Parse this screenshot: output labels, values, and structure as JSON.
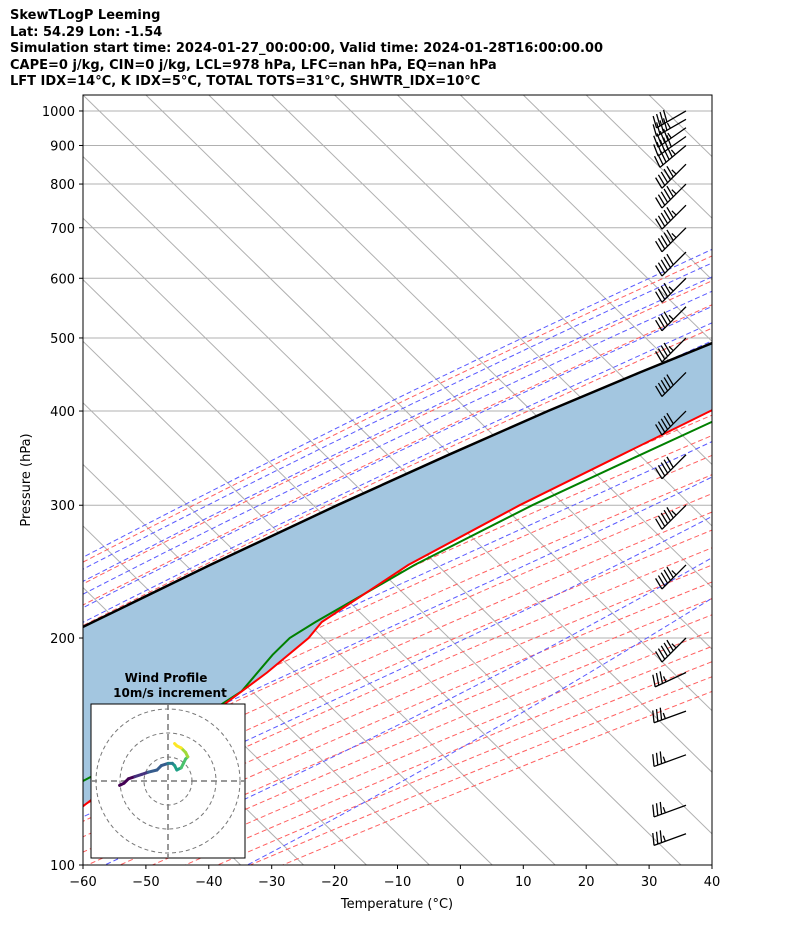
{
  "header": {
    "line1": "SkewTLogP Leeming",
    "line2": "Lat: 54.29   Lon: -1.54",
    "line3": "Simulation start time: 2024-01-27_00:00:00, Valid time: 2024-01-28T16:00:00.00",
    "line4": "CAPE=0 j/kg, CIN=0 j/kg, LCL=978 hPa, LFC=nan hPa, EQ=nan hPa",
    "line5": "LFT IDX=14°C, K IDX=5°C, TOTAL TOTS=31°C, SHWTR_IDX=10°C"
  },
  "colors": {
    "temperature": "#ff0000",
    "dewpoint": "#008000",
    "parcel": "#000000",
    "cape_shade": "#a3c6e0",
    "dry_adiabat": "#ff6060",
    "moist_adiabat": "#5a5aff",
    "mixing_ratio": "#9040c0",
    "isotherm": "#b0b0b0"
  },
  "chart_data": {
    "type": "line",
    "title": "SkewTLogP Leeming",
    "xlabel": "Temperature (°C)",
    "ylabel": "Pressure (hPa)",
    "xlim": [
      -60,
      40
    ],
    "ylim": [
      1050,
      100
    ],
    "y_scale": "log",
    "grid": true,
    "x_ticks": [
      "−60",
      "−50",
      "−40",
      "−30",
      "−20",
      "−10",
      "0",
      "10",
      "20",
      "30",
      "40"
    ],
    "y_ticks": [
      "1000",
      "900",
      "800",
      "700",
      "600",
      "500",
      "400",
      "300",
      "200",
      "100"
    ],
    "y_tick_values": [
      1000,
      900,
      800,
      700,
      600,
      500,
      400,
      300,
      200,
      100
    ],
    "series": [
      {
        "name": "Temperature",
        "pressure": [
          1000,
          990,
          970,
          950,
          930,
          910,
          900,
          880,
          850,
          800,
          750,
          700,
          650,
          600,
          550,
          500,
          450,
          400,
          350,
          300,
          250,
          210,
          200,
          180,
          160,
          140,
          120,
          100
        ],
        "temperature": [
          7.2,
          8.5,
          10.0,
          13.0,
          15.5,
          16.8,
          17.0,
          16.2,
          14.5,
          10.0,
          5.0,
          -0.5,
          -6.0,
          -11.0,
          -16.0,
          -21.5,
          -27.5,
          -34.0,
          -41.0,
          -49.0,
          -57.0,
          -61.5,
          -61.0,
          -62.0,
          -64.0,
          -67.0,
          -69.5,
          -71.5
        ]
      },
      {
        "name": "Dewpoint",
        "pressure": [
          1000,
          970,
          930,
          900,
          880,
          860,
          840,
          800,
          750,
          700,
          650,
          600,
          550,
          500,
          450,
          400,
          350,
          300,
          250,
          210,
          200,
          190,
          170,
          155,
          140,
          120,
          110,
          100
        ],
        "temperature": [
          6.5,
          5.5,
          2.0,
          -2.0,
          -8.0,
          -12.0,
          -16.0,
          -17.5,
          -14.5,
          -9.5,
          -6.5,
          -7.0,
          -10.0,
          -16.0,
          -23.0,
          -30.0,
          -38.0,
          -47.0,
          -56.0,
          -62.5,
          -64.0,
          -64.0,
          -63.0,
          -65.5,
          -70.0,
          -77.0,
          -82.0,
          -88.0
        ]
      },
      {
        "name": "Parcel",
        "pressure": [
          1000,
          978,
          950,
          900,
          850,
          800,
          750,
          700,
          650,
          600,
          550,
          500,
          450,
          400,
          350,
          300,
          250,
          200,
          150,
          120,
          100
        ],
        "temperature": [
          7.2,
          6.5,
          4.6,
          1.0,
          -3.0,
          -7.2,
          -11.8,
          -17.0,
          -22.8,
          -29.2,
          -36.2,
          -43.6,
          -51.5,
          -59.8,
          -68.5,
          -78.0,
          -88.5,
          -100.5,
          -115.0,
          -125.0,
          -132.0
        ]
      }
    ],
    "cape_region": "between parcel and temperature profiles",
    "wind_barbs": {
      "pressure": [
        1000,
        975,
        950,
        925,
        900,
        850,
        800,
        750,
        700,
        650,
        600,
        550,
        500,
        450,
        400,
        350,
        300,
        250,
        200,
        180,
        160,
        140,
        120,
        110
      ],
      "speed_kt": [
        40,
        45,
        45,
        50,
        55,
        55,
        55,
        55,
        55,
        50,
        45,
        45,
        45,
        50,
        50,
        50,
        55,
        55,
        55,
        35,
        35,
        35,
        35,
        35
      ],
      "direction_deg": [
        240,
        240,
        235,
        235,
        230,
        225,
        225,
        225,
        225,
        225,
        225,
        225,
        225,
        225,
        225,
        225,
        225,
        225,
        225,
        245,
        250,
        250,
        250,
        250
      ]
    },
    "hodograph": {
      "title": "Wind Profile",
      "subtitle": "10m/s increment",
      "u": [
        -22,
        -20,
        -18,
        -15,
        -12,
        -9,
        -5,
        -3,
        0,
        2,
        3,
        4,
        6,
        7,
        8,
        9,
        8,
        6,
        4,
        3
      ],
      "v": [
        -2,
        -1,
        1,
        2,
        3,
        4,
        5,
        7,
        8,
        8,
        7,
        5,
        6,
        8,
        10,
        11,
        13,
        15,
        16,
        17
      ]
    }
  }
}
